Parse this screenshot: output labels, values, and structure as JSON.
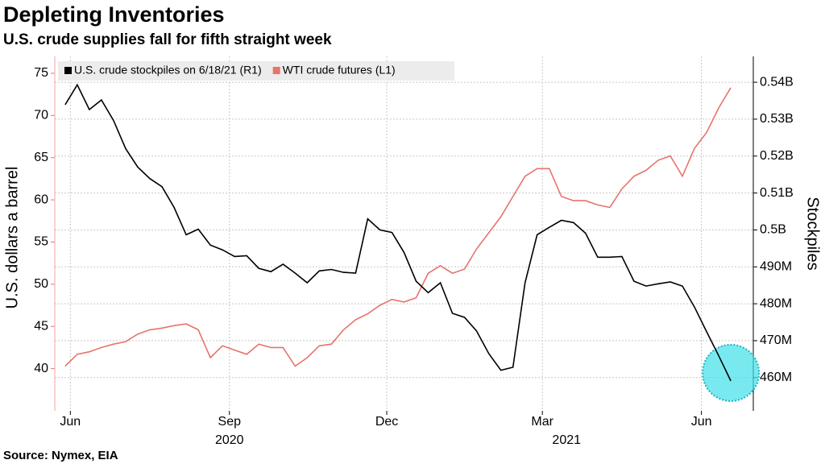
{
  "chart_data": {
    "type": "line",
    "title": "Depleting Inventories",
    "subtitle": "U.S. crude supplies fall for fifth straight week",
    "ylabel": "U.S. dollars a barrel",
    "y2label": "Stockpiles",
    "source": "Source: Nymex, EIA",
    "x": [
      "2020-05-29",
      "2020-06-05",
      "2020-06-12",
      "2020-06-19",
      "2020-06-26",
      "2020-07-03",
      "2020-07-10",
      "2020-07-17",
      "2020-07-24",
      "2020-07-31",
      "2020-08-07",
      "2020-08-14",
      "2020-08-21",
      "2020-08-28",
      "2020-09-04",
      "2020-09-11",
      "2020-09-18",
      "2020-09-25",
      "2020-10-02",
      "2020-10-09",
      "2020-10-16",
      "2020-10-23",
      "2020-10-30",
      "2020-11-06",
      "2020-11-13",
      "2020-11-20",
      "2020-11-27",
      "2020-12-04",
      "2020-12-11",
      "2020-12-18",
      "2020-12-25",
      "2021-01-01",
      "2021-01-08",
      "2021-01-15",
      "2021-01-22",
      "2021-01-29",
      "2021-02-05",
      "2021-02-12",
      "2021-02-19",
      "2021-02-26",
      "2021-03-05",
      "2021-03-12",
      "2021-03-19",
      "2021-03-26",
      "2021-04-02",
      "2021-04-09",
      "2021-04-16",
      "2021-04-23",
      "2021-04-30",
      "2021-05-07",
      "2021-05-14",
      "2021-05-21",
      "2021-05-28",
      "2021-06-04",
      "2021-06-11",
      "2021-06-18"
    ],
    "xlim": [
      "2020-05-23",
      "2021-07-01"
    ],
    "xticks": [
      {
        "value": "2020-06-01",
        "label": "Jun"
      },
      {
        "value": "2020-09-01",
        "label": "Sep"
      },
      {
        "value": "2020-12-01",
        "label": "Dec"
      },
      {
        "value": "2021-03-01",
        "label": "Mar"
      },
      {
        "value": "2021-06-01",
        "label": "Jun"
      }
    ],
    "year_labels": [
      {
        "value": "2020-09-01",
        "label": "2020"
      },
      {
        "value": "2021-03-15",
        "label": "2021"
      }
    ],
    "ylim": [
      35,
      77
    ],
    "yticks": [
      40,
      45,
      50,
      55,
      60,
      65,
      70,
      75
    ],
    "y2lim": [
      451,
      547
    ],
    "y2ticks": [
      {
        "value": 460,
        "label": "460M"
      },
      {
        "value": 470,
        "label": "470M"
      },
      {
        "value": 480,
        "label": "480M"
      },
      {
        "value": 490,
        "label": "490M"
      },
      {
        "value": 500,
        "label": "0.5B"
      },
      {
        "value": 510,
        "label": "0.51B"
      },
      {
        "value": 520,
        "label": "0.52B"
      },
      {
        "value": 530,
        "label": "0.53B"
      },
      {
        "value": 540,
        "label": "0.54B"
      }
    ],
    "grid": true,
    "legend": "top-left",
    "series": [
      {
        "name": "U.S. crude stockpiles on 6/18/21 (R1)",
        "color": "#000000",
        "axis": "y2",
        "values": [
          533.9,
          539.3,
          532.6,
          535.2,
          529.6,
          522.0,
          517.0,
          513.9,
          511.7,
          506.1,
          498.7,
          500.2,
          495.9,
          494.6,
          492.8,
          493.0,
          489.6,
          488.7,
          490.7,
          488.3,
          485.7,
          488.9,
          489.3,
          488.5,
          488.3,
          503.0,
          500.0,
          499.3,
          493.9,
          486.1,
          483.0,
          485.7,
          477.4,
          476.3,
          472.6,
          466.5,
          462.0,
          462.8,
          485.7,
          498.7,
          500.7,
          502.6,
          502.0,
          499.1,
          492.6,
          492.6,
          492.8,
          486.1,
          484.8,
          485.4,
          485.9,
          484.8,
          479.1,
          472.4,
          465.9,
          459.1
        ]
      },
      {
        "name": "WTI crude futures (L1)",
        "color": "#e8736c",
        "axis": "y",
        "values": [
          40.3,
          41.7,
          42.0,
          42.5,
          42.9,
          43.2,
          44.1,
          44.6,
          44.8,
          45.1,
          45.3,
          44.6,
          41.3,
          42.7,
          42.2,
          41.7,
          42.9,
          42.5,
          42.5,
          40.3,
          41.3,
          42.7,
          42.9,
          44.6,
          45.8,
          46.5,
          47.5,
          48.2,
          47.9,
          48.4,
          51.3,
          52.2,
          51.3,
          51.8,
          54.2,
          56.1,
          58.0,
          60.4,
          62.8,
          63.7,
          63.7,
          60.4,
          59.9,
          59.9,
          59.4,
          59.1,
          61.3,
          62.8,
          63.5,
          64.7,
          65.2,
          62.8,
          66.1,
          68.0,
          70.9,
          73.3
        ]
      }
    ]
  }
}
